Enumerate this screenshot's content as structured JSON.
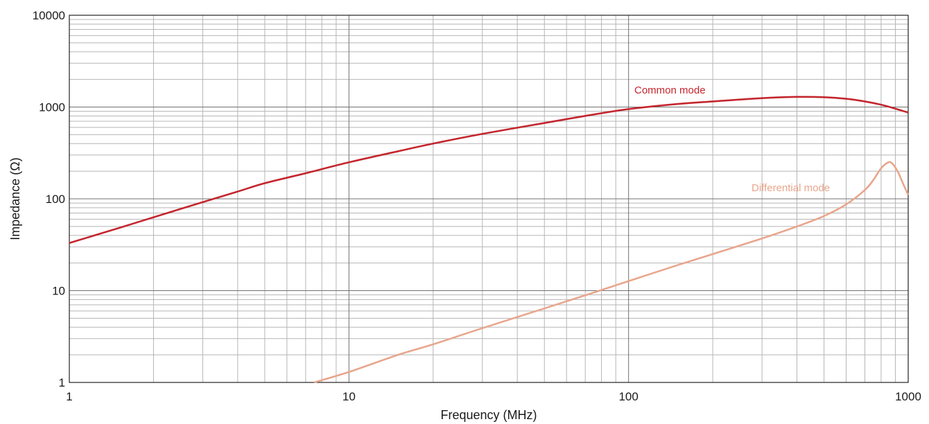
{
  "chart_data": {
    "type": "line",
    "xlabel": "Frequency (MHz)",
    "ylabel": "Impedance (Ω)",
    "x_scale": "log",
    "y_scale": "log",
    "xlim": [
      1,
      1000
    ],
    "ylim": [
      1,
      10000
    ],
    "x_ticks": [
      "1",
      "10",
      "100",
      "1000"
    ],
    "y_ticks": [
      "1",
      "10",
      "100",
      "1000",
      "10000"
    ],
    "grid": true,
    "legend": "inline labels",
    "series": [
      {
        "name": "Common mode",
        "color": "#c4262e",
        "points": [
          [
            1,
            33
          ],
          [
            1.5,
            48
          ],
          [
            2,
            63
          ],
          [
            3,
            92
          ],
          [
            4,
            120
          ],
          [
            5,
            148
          ],
          [
            7,
            190
          ],
          [
            10,
            250
          ],
          [
            15,
            330
          ],
          [
            20,
            400
          ],
          [
            30,
            510
          ],
          [
            50,
            670
          ],
          [
            70,
            800
          ],
          [
            100,
            950
          ],
          [
            150,
            1080
          ],
          [
            200,
            1150
          ],
          [
            300,
            1250
          ],
          [
            400,
            1290
          ],
          [
            500,
            1280
          ],
          [
            600,
            1230
          ],
          [
            700,
            1150
          ],
          [
            800,
            1060
          ],
          [
            900,
            960
          ],
          [
            1000,
            870
          ]
        ]
      },
      {
        "name": "Differential mode",
        "color": "#e8a68c",
        "points": [
          [
            7.5,
            1
          ],
          [
            10,
            1.3
          ],
          [
            15,
            2.0
          ],
          [
            20,
            2.6
          ],
          [
            30,
            3.9
          ],
          [
            50,
            6.4
          ],
          [
            70,
            8.9
          ],
          [
            100,
            12.7
          ],
          [
            150,
            19
          ],
          [
            200,
            25
          ],
          [
            300,
            37
          ],
          [
            400,
            50
          ],
          [
            500,
            65
          ],
          [
            600,
            87
          ],
          [
            700,
            125
          ],
          [
            750,
            160
          ],
          [
            800,
            215
          ],
          [
            850,
            250
          ],
          [
            880,
            240
          ],
          [
            920,
            195
          ],
          [
            960,
            145
          ],
          [
            1000,
            110
          ]
        ]
      }
    ]
  }
}
